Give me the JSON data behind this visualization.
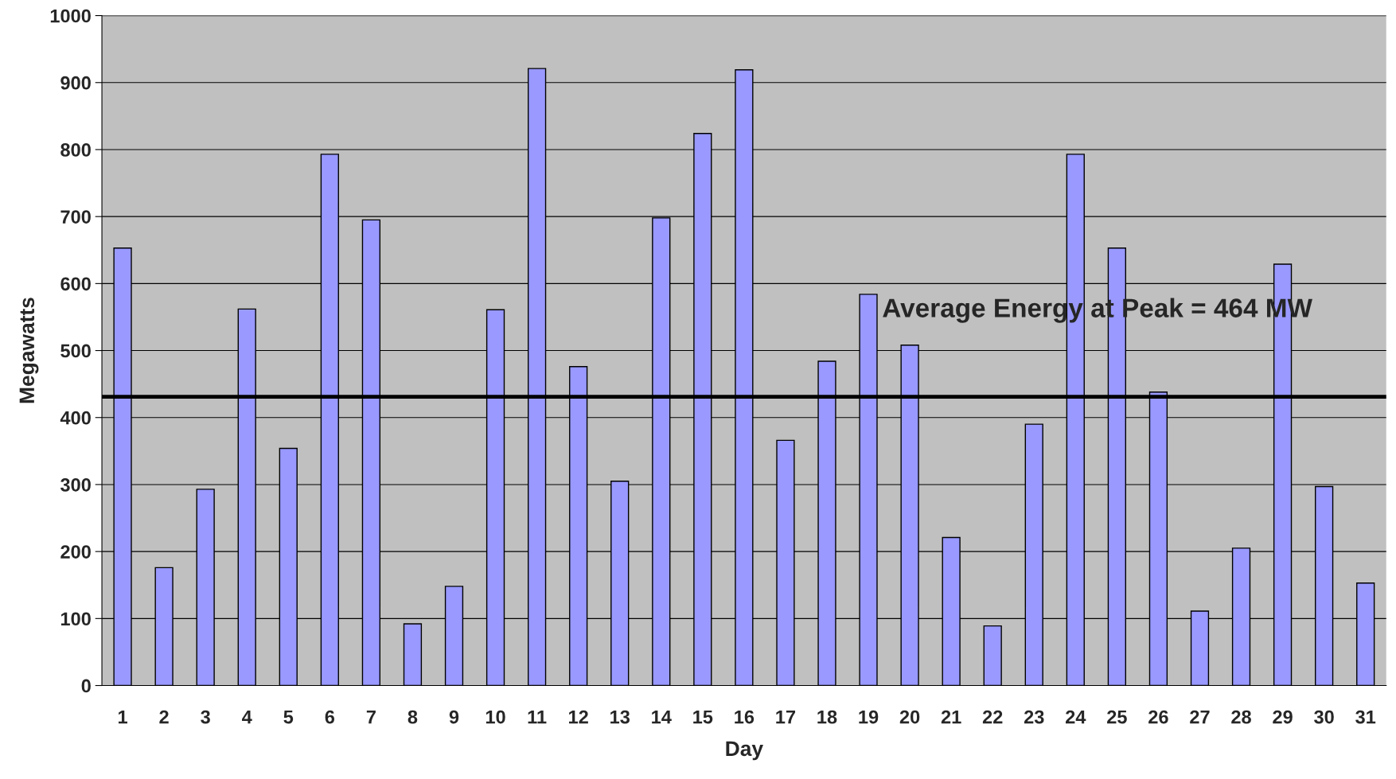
{
  "chart_data": {
    "type": "bar",
    "xlabel": "Day",
    "ylabel": "Megawatts",
    "categories": [
      "1",
      "2",
      "3",
      "4",
      "5",
      "6",
      "7",
      "8",
      "9",
      "10",
      "11",
      "12",
      "13",
      "14",
      "15",
      "16",
      "17",
      "18",
      "19",
      "20",
      "21",
      "22",
      "23",
      "24",
      "25",
      "26",
      "27",
      "28",
      "29",
      "30",
      "31"
    ],
    "values": [
      653,
      176,
      293,
      562,
      354,
      793,
      695,
      92,
      148,
      561,
      921,
      476,
      305,
      698,
      824,
      919,
      366,
      484,
      584,
      508,
      221,
      89,
      390,
      793,
      653,
      438,
      111,
      205,
      629,
      297,
      153
    ],
    "color": "#9999ff",
    "ylim": [
      0,
      1000
    ],
    "yticks": [
      0,
      100,
      200,
      300,
      400,
      500,
      600,
      700,
      800,
      900,
      1000
    ],
    "grid": "y",
    "ref_lines": [
      {
        "axis": "y",
        "value": 431,
        "color": "#000000",
        "line_style": "solid"
      }
    ],
    "annotations": [
      "Average Energy at Peak = 464 MW"
    ]
  }
}
